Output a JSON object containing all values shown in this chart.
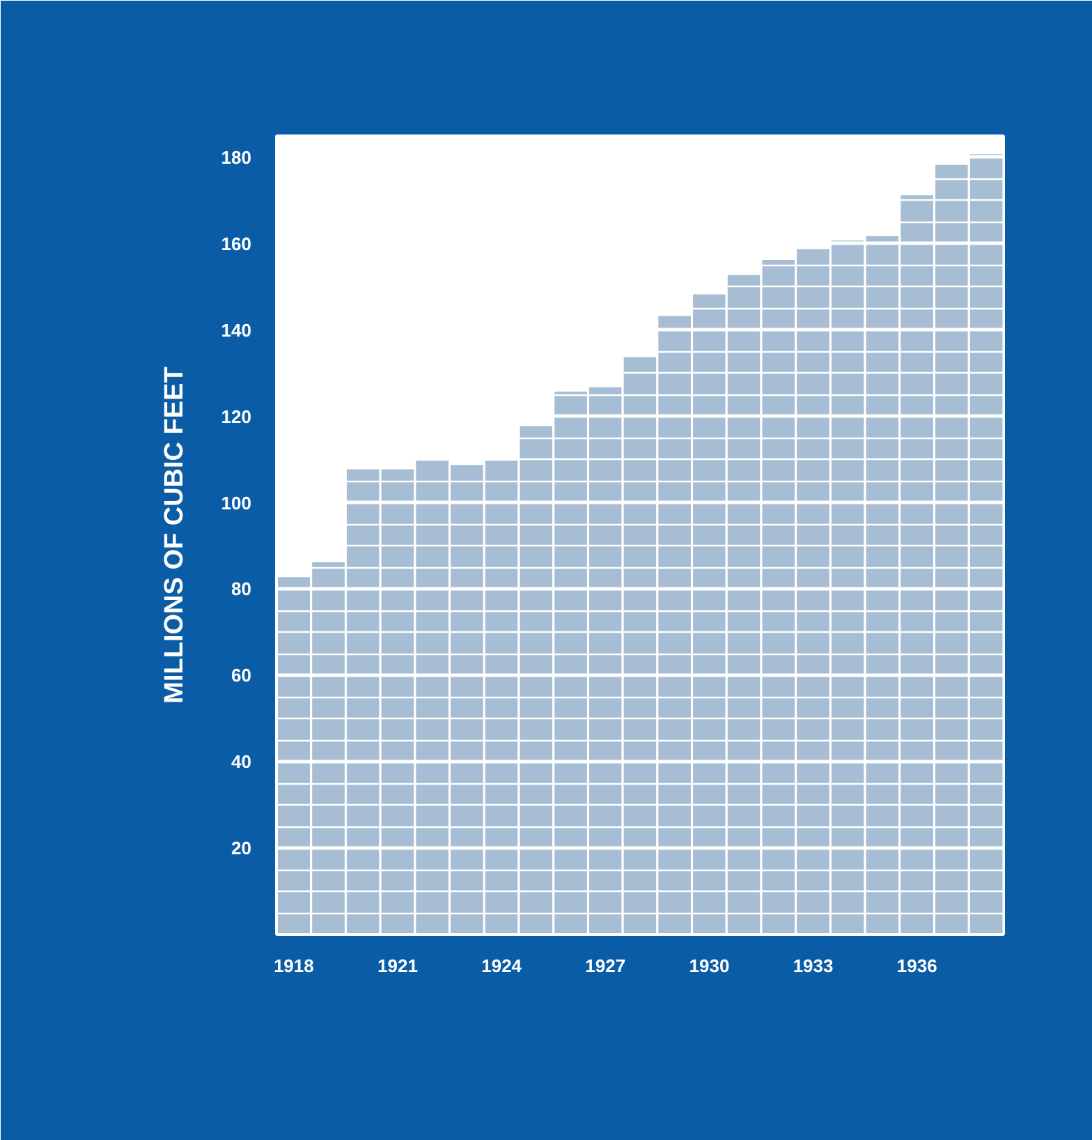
{
  "chart_data": {
    "type": "bar",
    "ylabel": "MILLIONS OF CUBIC FEET",
    "x": [
      1918,
      1919,
      1920,
      1921,
      1922,
      1923,
      1924,
      1925,
      1926,
      1927,
      1928,
      1929,
      1930,
      1931,
      1932,
      1933,
      1934,
      1935,
      1936,
      1937,
      1938
    ],
    "values": [
      83,
      86.5,
      108,
      108,
      110,
      109,
      110,
      118,
      126,
      127,
      134,
      143.5,
      148.5,
      153,
      156.5,
      159,
      161,
      162,
      171.5,
      178.5,
      181
    ],
    "color": "#a7bdd3",
    "xlim": [
      1917.5,
      1938.5
    ],
    "xticks": [
      1918,
      1921,
      1924,
      1927,
      1930,
      1933,
      1936
    ],
    "ylim": [
      0,
      185
    ],
    "yticks": [
      20,
      40,
      60,
      80,
      100,
      120,
      140,
      160,
      180
    ],
    "grid": "y"
  }
}
